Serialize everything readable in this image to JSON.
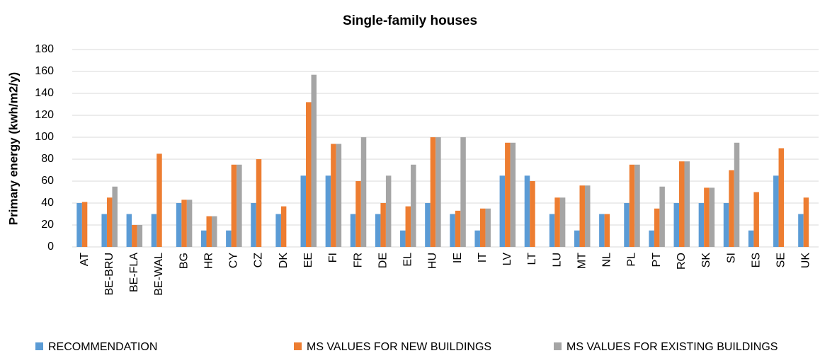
{
  "chart_data": {
    "type": "bar",
    "title": "Single-family houses",
    "y_label": "Primary energy (kwh/m2/y)",
    "categories": [
      "AT",
      "BE-BRU",
      "BE-FLA",
      "BE-WAL",
      "BG",
      "HR",
      "CY",
      "CZ",
      "DK",
      "EE",
      "FI",
      "FR",
      "DE",
      "EL",
      "HU",
      "IE",
      "IT",
      "LV",
      "LT",
      "LU",
      "MT",
      "NL",
      "PL",
      "PT",
      "RO",
      "SK",
      "SI",
      "ES",
      "SE",
      "UK"
    ],
    "series": [
      {
        "name": "RECOMMENDATION",
        "color": "#5b9bd5",
        "values": [
          40,
          30,
          30,
          30,
          40,
          15,
          15,
          40,
          30,
          65,
          65,
          30,
          30,
          15,
          40,
          30,
          15,
          65,
          65,
          30,
          15,
          30,
          40,
          15,
          40,
          40,
          40,
          15,
          65,
          30
        ]
      },
      {
        "name": "MS VALUES FOR NEW BUILDINGS",
        "color": "#ed7d31",
        "values": [
          41,
          45,
          20,
          85,
          43,
          28,
          75,
          80,
          37,
          132,
          94,
          60,
          40,
          37,
          100,
          33,
          35,
          95,
          60,
          45,
          56,
          30,
          75,
          35,
          78,
          54,
          70,
          50,
          90,
          45
        ]
      },
      {
        "name": "MS VALUES FOR EXISTING BUILDINGS",
        "color": "#a5a5a5",
        "values": [
          null,
          55,
          20,
          null,
          43,
          28,
          75,
          null,
          null,
          157,
          94,
          100,
          65,
          75,
          100,
          100,
          35,
          95,
          null,
          45,
          56,
          null,
          75,
          55,
          78,
          54,
          95,
          null,
          null,
          null
        ]
      }
    ],
    "ylim": [
      0,
      180
    ],
    "yticks": [
      0,
      20,
      40,
      60,
      80,
      100,
      120,
      140,
      160,
      180
    ],
    "grid": true,
    "legend": "bottom"
  }
}
